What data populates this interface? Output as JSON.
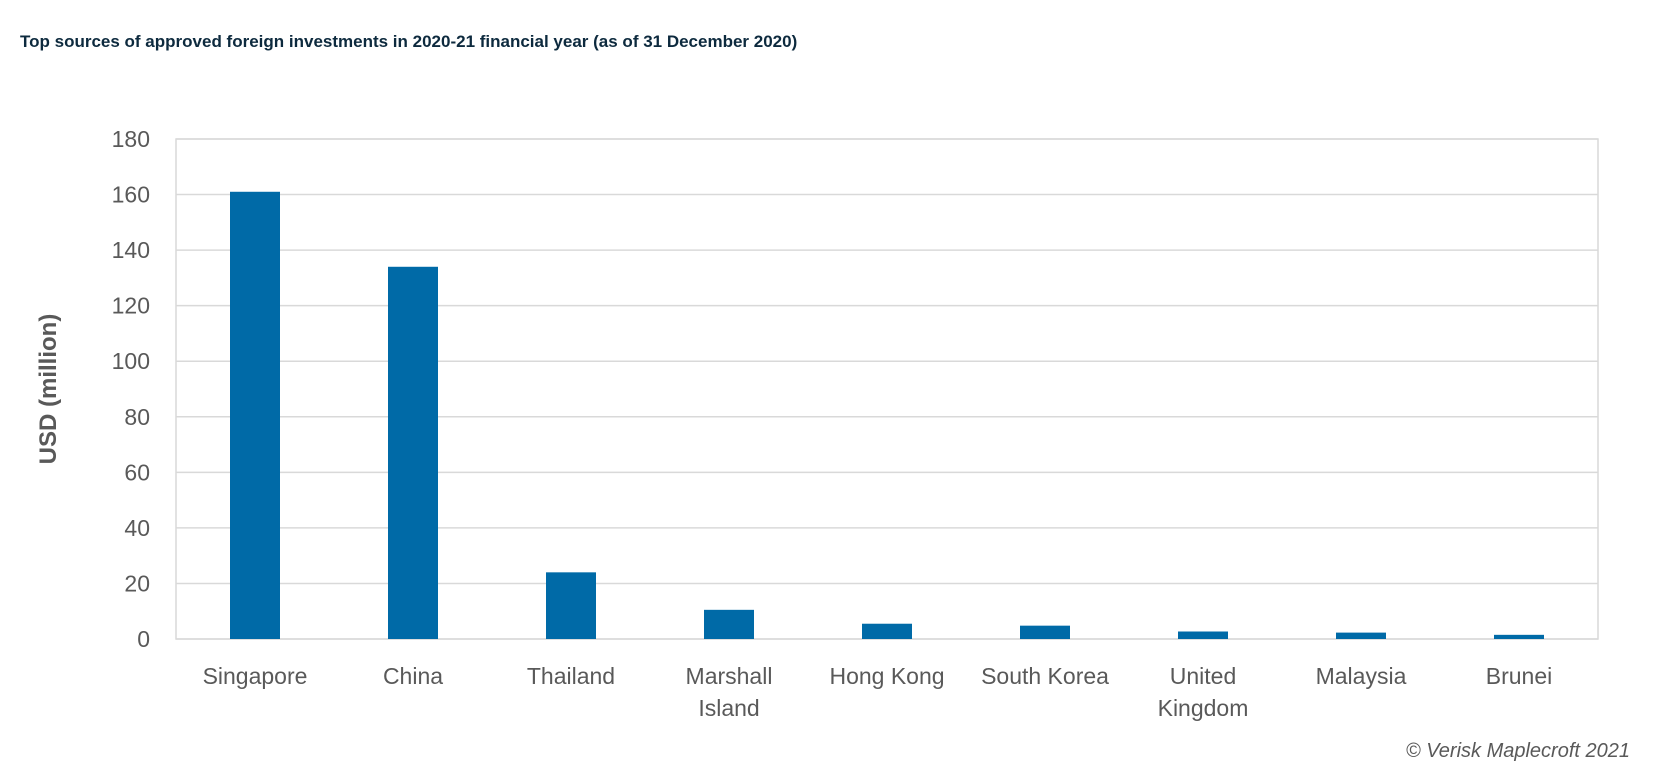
{
  "chart_data": {
    "type": "bar",
    "title": "Top sources of approved foreign investments in 2020-21 financial year (as of 31 December 2020)",
    "xlabel": "",
    "ylabel": "USD (million)",
    "ylim": [
      0,
      180
    ],
    "yticks": [
      0,
      20,
      40,
      60,
      80,
      100,
      120,
      140,
      160,
      180
    ],
    "grid": true,
    "categories": [
      "Singapore",
      "China",
      "Thailand",
      "Marshall Island",
      "Hong Kong",
      "South Korea",
      "United Kingdom",
      "Malaysia",
      "Brunei"
    ],
    "category_lines": [
      [
        "Singapore"
      ],
      [
        "China"
      ],
      [
        "Thailand"
      ],
      [
        "Marshall",
        "Island"
      ],
      [
        "Hong Kong"
      ],
      [
        "South Korea"
      ],
      [
        "United",
        "Kingdom"
      ],
      [
        "Malaysia"
      ],
      [
        "Brunei"
      ]
    ],
    "values": [
      161,
      134,
      24,
      10.5,
      5.5,
      4.8,
      2.7,
      2.3,
      1.5
    ],
    "bar_color": "#006aa7",
    "source": "© Verisk Maplecroft 2021"
  }
}
